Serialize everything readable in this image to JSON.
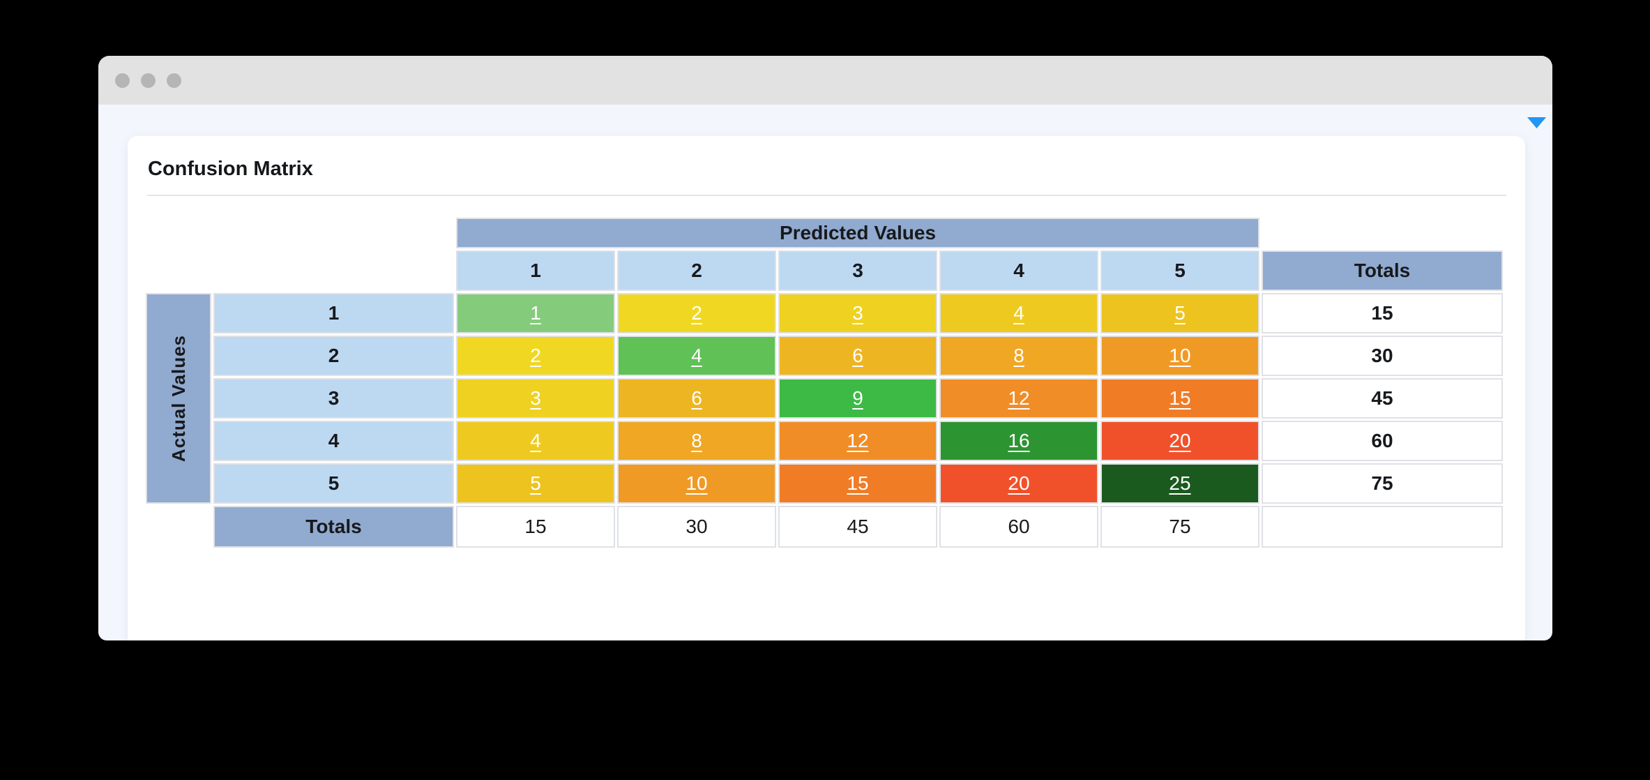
{
  "theme": {
    "titlebar_bg": "#e2e2e2",
    "window_dot": "#b5b5b5",
    "content_bg": "#f3f6fc",
    "accent_blue": "#2196f3",
    "header_dark_blue": "#91aacf",
    "header_light_blue": "#bdd8f1",
    "cell_border": "#dfe1e6"
  },
  "panel": {
    "title": "Confusion Matrix"
  },
  "matrix": {
    "predicted_axis_label": "Predicted Values",
    "actual_axis_label": "Actual Values",
    "col_totals_header": "Totals",
    "row_totals_header": "Totals",
    "predicted_headers": [
      "1",
      "2",
      "3",
      "4",
      "5"
    ],
    "actual_headers": [
      "1",
      "2",
      "3",
      "4",
      "5"
    ],
    "rows": [
      {
        "label": "1",
        "cells": [
          {
            "v": "1",
            "bg": "#85cb7c"
          },
          {
            "v": "2",
            "bg": "#f0d822"
          },
          {
            "v": "3",
            "bg": "#efd121"
          },
          {
            "v": "4",
            "bg": "#eeca21"
          },
          {
            "v": "5",
            "bg": "#edc320"
          }
        ],
        "total": "15"
      },
      {
        "label": "2",
        "cells": [
          {
            "v": "2",
            "bg": "#f0d822"
          },
          {
            "v": "4",
            "bg": "#60c157"
          },
          {
            "v": "6",
            "bg": "#eeb523"
          },
          {
            "v": "8",
            "bg": "#efa724"
          },
          {
            "v": "10",
            "bg": "#f09a26"
          }
        ],
        "total": "30"
      },
      {
        "label": "3",
        "cells": [
          {
            "v": "3",
            "bg": "#efd121"
          },
          {
            "v": "6",
            "bg": "#eeb523"
          },
          {
            "v": "9",
            "bg": "#3cba45"
          },
          {
            "v": "12",
            "bg": "#f08d26"
          },
          {
            "v": "15",
            "bg": "#f07c26"
          }
        ],
        "total": "45"
      },
      {
        "label": "4",
        "cells": [
          {
            "v": "4",
            "bg": "#eeca21"
          },
          {
            "v": "8",
            "bg": "#efa724"
          },
          {
            "v": "12",
            "bg": "#f08d26"
          },
          {
            "v": "16",
            "bg": "#2d9432"
          },
          {
            "v": "20",
            "bg": "#f1512a"
          }
        ],
        "total": "60"
      },
      {
        "label": "5",
        "cells": [
          {
            "v": "5",
            "bg": "#edc320"
          },
          {
            "v": "10",
            "bg": "#f09a26"
          },
          {
            "v": "15",
            "bg": "#f07c26"
          },
          {
            "v": "20",
            "bg": "#f1512a"
          },
          {
            "v": "25",
            "bg": "#1b5a1f"
          }
        ],
        "total": "75"
      }
    ],
    "column_totals": [
      "15",
      "30",
      "45",
      "60",
      "75"
    ]
  }
}
